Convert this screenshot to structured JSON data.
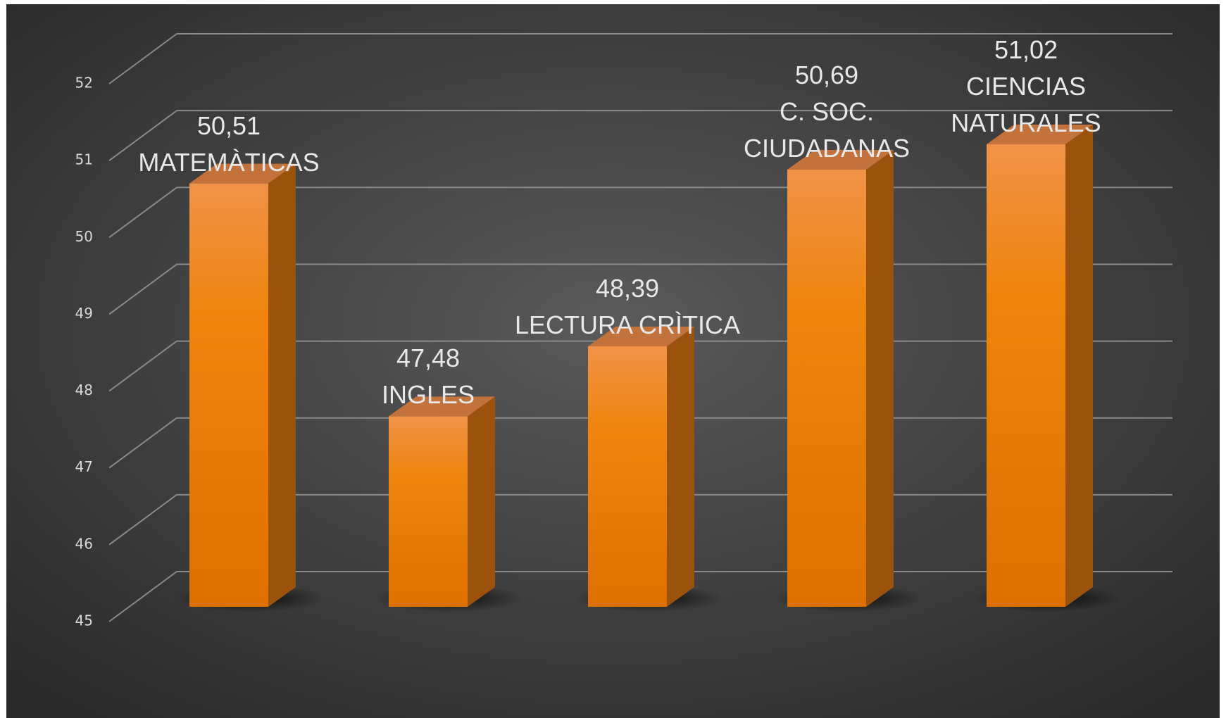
{
  "chart_data": {
    "type": "bar3d",
    "categories": [
      "MATEMÀTICAS",
      "INGLES",
      "LECTURA CRÌTICA",
      "C. SOC.\nCIUDADANAS",
      "CIENCIAS\nNATURALES"
    ],
    "values": [
      50.51,
      47.48,
      48.39,
      50.69,
      51.02
    ],
    "value_labels": [
      "50,51",
      "47,48",
      "48,39",
      "50,69",
      "51,02"
    ],
    "color": "#ef8a2a",
    "ylim": [
      45,
      52
    ],
    "yticks": [
      45,
      46,
      47,
      48,
      49,
      50,
      51,
      52
    ],
    "grid": true
  }
}
